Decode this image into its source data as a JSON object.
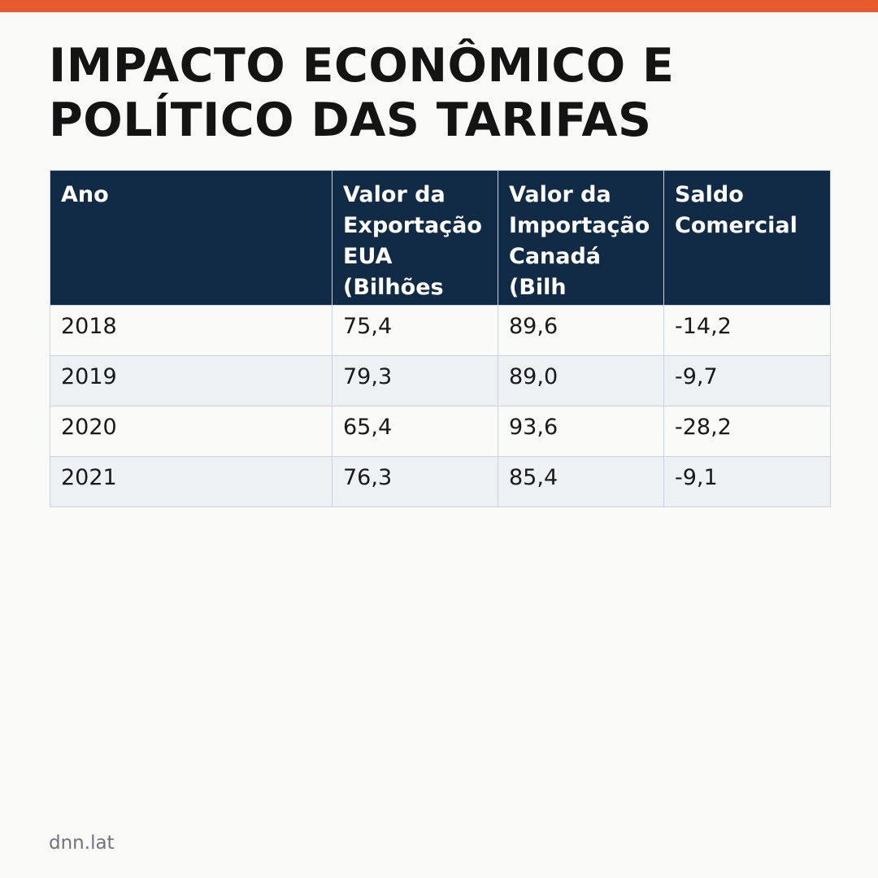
{
  "title": "IMPACTO ECONÔMICO E POLÍTICO DAS TARIFAS",
  "colors": {
    "accent_bar": "#e95a2e",
    "header_background": "#112a45",
    "header_text": "#ffffff",
    "row_alt_background": "#edf1f4",
    "border": "#c9d2de"
  },
  "table": {
    "columns": [
      "Ano",
      "Valor da Exportação EUA (Bilhões",
      "Valor da Importação Canadá (Bilh",
      "Saldo Comercial"
    ],
    "rows": [
      [
        "2018",
        "75,4",
        "89,6",
        "-14,2"
      ],
      [
        "2019",
        "79,3",
        "89,0",
        "-9,7"
      ],
      [
        "2020",
        "65,4",
        "93,6",
        "-28,2"
      ],
      [
        "2021",
        "76,3",
        "85,4",
        "-9,1"
      ]
    ]
  },
  "source": "dnn.lat"
}
